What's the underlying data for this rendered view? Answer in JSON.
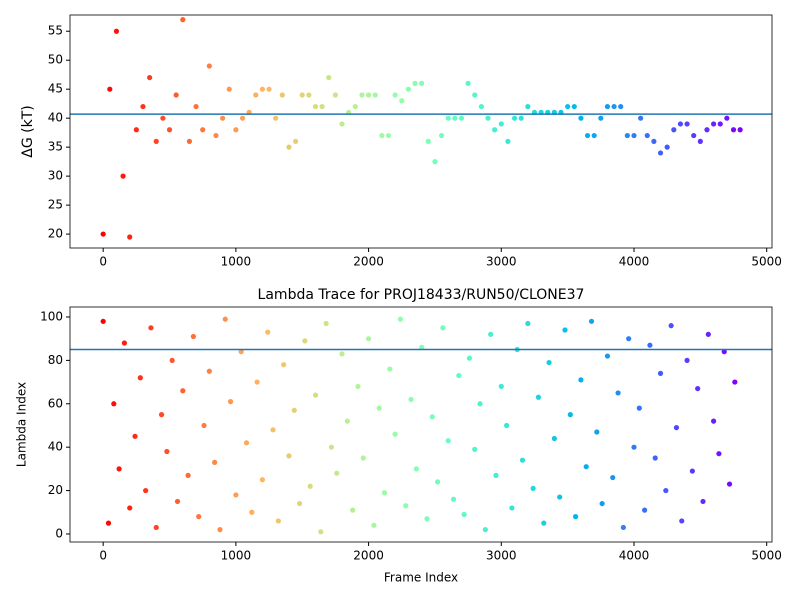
{
  "chart_data": [
    {
      "type": "scatter",
      "ylabel": "ΔG (kT)",
      "colormap": "rainbow_r",
      "hline": 40.7,
      "hline_color": "#1f77b4",
      "x": [
        0,
        50,
        100,
        150,
        200,
        250,
        300,
        350,
        400,
        450,
        500,
        550,
        600,
        650,
        700,
        750,
        800,
        850,
        900,
        950,
        1000,
        1050,
        1100,
        1150,
        1200,
        1250,
        1300,
        1350,
        1400,
        1450,
        1500,
        1550,
        1600,
        1650,
        1700,
        1750,
        1800,
        1850,
        1900,
        1950,
        2000,
        2050,
        2100,
        2150,
        2200,
        2250,
        2300,
        2350,
        2400,
        2450,
        2500,
        2550,
        2600,
        2650,
        2700,
        2750,
        2800,
        2850,
        2900,
        2950,
        3000,
        3050,
        3100,
        3150,
        3200,
        3250,
        3300,
        3350,
        3400,
        3450,
        3500,
        3550,
        3600,
        3650,
        3700,
        3750,
        3800,
        3850,
        3900,
        3950,
        4000,
        4050,
        4100,
        4150,
        4200,
        4250,
        4300,
        4350,
        4400,
        4450,
        4500,
        4550,
        4600,
        4650,
        4700,
        4750,
        4800
      ],
      "values": [
        20,
        45,
        55,
        30,
        19.5,
        38,
        42,
        47,
        36,
        40,
        38,
        44,
        57,
        36,
        42,
        38,
        49,
        37,
        40,
        45,
        38,
        40,
        41,
        44,
        45,
        45,
        40,
        44,
        35,
        36,
        44,
        44,
        42,
        42,
        47,
        44,
        39,
        41,
        42,
        44,
        44,
        44,
        37,
        37,
        44,
        43,
        45,
        46,
        46,
        36,
        32.5,
        37,
        40,
        40,
        40,
        46,
        44,
        42,
        40,
        38,
        39,
        36,
        40,
        40,
        42,
        41,
        41,
        41,
        41,
        41,
        42,
        42,
        40,
        37,
        37,
        40,
        42,
        42,
        42,
        37,
        37,
        40,
        37,
        36,
        34,
        35,
        38,
        39,
        39,
        37,
        36,
        38,
        39,
        39,
        40,
        38,
        38
      ],
      "xlim": [
        -250,
        5040
      ],
      "ylim": [
        17.6,
        57.8
      ],
      "xticks": [
        0,
        1000,
        2000,
        3000,
        4000,
        5000
      ],
      "yticks": [
        20,
        25,
        30,
        35,
        40,
        45,
        50,
        55
      ]
    },
    {
      "type": "scatter",
      "title": "Lambda Trace for PROJ18433/RUN50/CLONE37",
      "xlabel": "Frame Index",
      "ylabel": "Lambda Index",
      "colormap": "rainbow_r",
      "hline": 85,
      "hline_color": "#1f77b4",
      "x": [
        0,
        40,
        80,
        120,
        160,
        200,
        240,
        280,
        320,
        360,
        400,
        440,
        480,
        520,
        560,
        600,
        640,
        680,
        720,
        760,
        800,
        840,
        880,
        920,
        960,
        1000,
        1040,
        1080,
        1120,
        1160,
        1200,
        1240,
        1280,
        1320,
        1360,
        1400,
        1440,
        1480,
        1520,
        1560,
        1600,
        1640,
        1680,
        1720,
        1760,
        1800,
        1840,
        1880,
        1920,
        1960,
        2000,
        2040,
        2080,
        2120,
        2160,
        2200,
        2240,
        2280,
        2320,
        2360,
        2400,
        2440,
        2480,
        2520,
        2560,
        2600,
        2640,
        2680,
        2720,
        2760,
        2800,
        2840,
        2880,
        2920,
        2960,
        3000,
        3040,
        3080,
        3120,
        3160,
        3200,
        3240,
        3280,
        3320,
        3360,
        3400,
        3440,
        3480,
        3520,
        3560,
        3600,
        3640,
        3680,
        3720,
        3760,
        3800,
        3840,
        3880,
        3920,
        3960,
        4000,
        4040,
        4080,
        4120,
        4160,
        4200,
        4240,
        4280,
        4320,
        4360,
        4400,
        4440,
        4480,
        4520,
        4560,
        4600,
        4640,
        4680,
        4720,
        4760
      ],
      "values": [
        98,
        5,
        60,
        30,
        88,
        12,
        45,
        72,
        20,
        95,
        3,
        55,
        38,
        80,
        15,
        66,
        27,
        91,
        8,
        50,
        75,
        33,
        2,
        99,
        61,
        18,
        84,
        42,
        10,
        70,
        25,
        93,
        48,
        6,
        78,
        36,
        57,
        14,
        89,
        22,
        64,
        1,
        97,
        40,
        28,
        83,
        52,
        11,
        68,
        35,
        90,
        4,
        58,
        19,
        76,
        46,
        99,
        13,
        62,
        30,
        86,
        7,
        54,
        24,
        95,
        43,
        16,
        73,
        9,
        81,
        39,
        60,
        2,
        92,
        27,
        68,
        50,
        12,
        85,
        34,
        97,
        21,
        63,
        5,
        79,
        44,
        17,
        94,
        55,
        8,
        71,
        31,
        98,
        47,
        14,
        82,
        26,
        65,
        3,
        90,
        40,
        58,
        11,
        87,
        35,
        74,
        20,
        96,
        49,
        6,
        80,
        29,
        67,
        15,
        92,
        52,
        37,
        84,
        23,
        70
      ],
      "xlim": [
        -250,
        5040
      ],
      "ylim": [
        -3.7,
        104.6
      ],
      "xticks": [
        0,
        1000,
        2000,
        3000,
        4000,
        5000
      ],
      "yticks": [
        0,
        20,
        40,
        60,
        80,
        100
      ]
    }
  ]
}
